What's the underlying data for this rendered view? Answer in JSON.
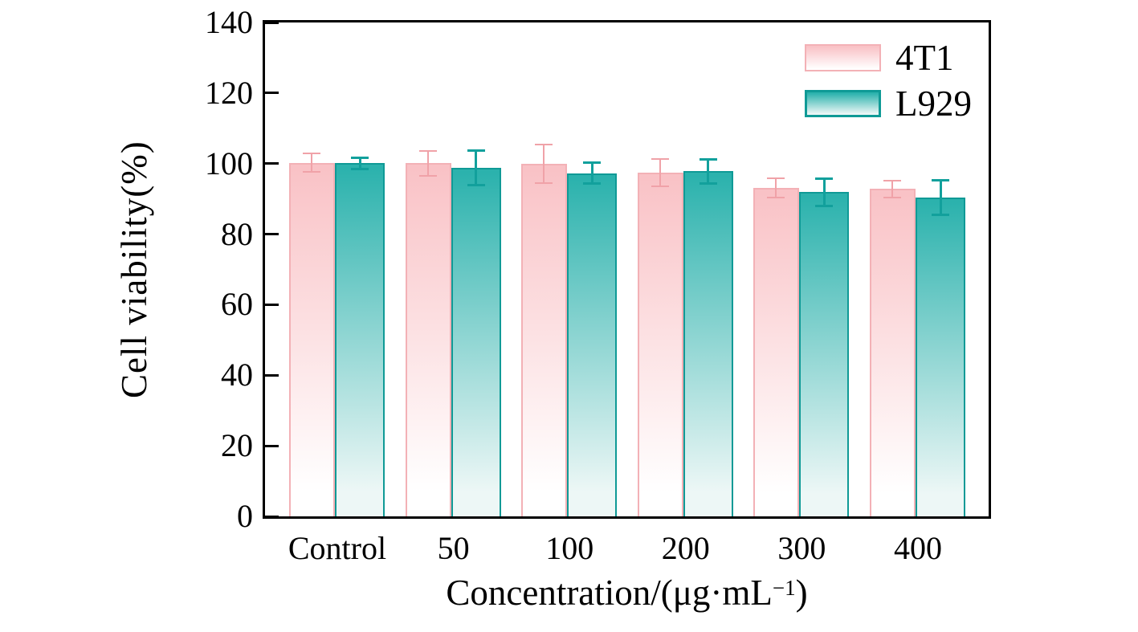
{
  "figure": {
    "background": "#ffffff",
    "axis_color": "#000000",
    "text_color": "#000000"
  },
  "chart_data": {
    "type": "bar",
    "title": "",
    "xlabel": "Concentration/(μg·mL⁻¹)",
    "xlabel_parts": {
      "prefix": "Concentration/(μg·mL",
      "superscript": "−1",
      "suffix": ")"
    },
    "ylabel": "Cell viability(%)",
    "categories": [
      "Control",
      "50",
      "100",
      "200",
      "300",
      "400"
    ],
    "series": [
      {
        "name": "4T1",
        "values": [
          100.2,
          100.1,
          99.9,
          97.4,
          93.1,
          92.8
        ],
        "errors": [
          2.6,
          3.5,
          5.5,
          3.8,
          2.8,
          2.4
        ],
        "fill_top": "#f9c2c6",
        "fill_bottom": "#ffffff",
        "border": "#f3b1b6",
        "error_color": "#f0a2a8"
      },
      {
        "name": "L929",
        "values": [
          100.1,
          98.7,
          97.3,
          97.8,
          91.9,
          90.4
        ],
        "errors": [
          1.7,
          5.0,
          3.1,
          3.5,
          4.0,
          5.0
        ],
        "fill_top": "#2bb2ad",
        "fill_bottom": "#edf7f6",
        "border": "#0f9a96",
        "error_color": "#12a09c"
      }
    ],
    "ylim": [
      0,
      140
    ],
    "yticks": [
      0,
      20,
      40,
      60,
      80,
      100,
      120,
      140
    ],
    "grid": false,
    "legend_position": "top-right"
  }
}
